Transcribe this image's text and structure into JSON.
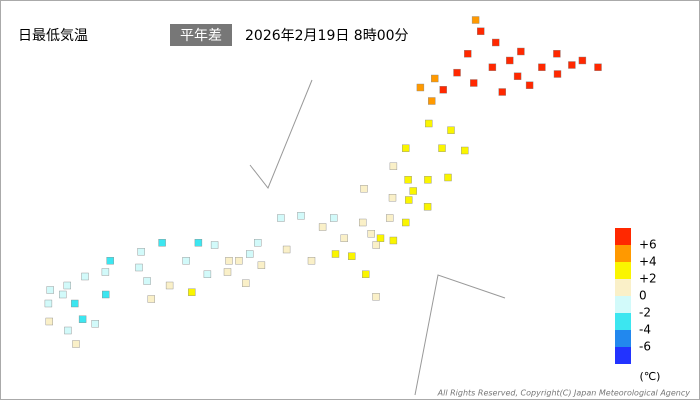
{
  "header": {
    "title": "日最低気温",
    "badge": "平年差",
    "datetime": "2026年2月19日 8時00分"
  },
  "legend": {
    "ticks": [
      {
        "value": 6,
        "label": "+6"
      },
      {
        "value": 4,
        "label": "+4"
      },
      {
        "value": 2,
        "label": "+2"
      },
      0,
      -2,
      -4,
      -6
    ],
    "colors": [
      "#ff2800",
      "#ff9900",
      "#faf500",
      "#faf0c8",
      "#d2fafa",
      "#3ce6f0",
      "#2288ee",
      "#2233ff"
    ],
    "unit": "(℃)"
  },
  "stations": {
    "lon": [
      141.7,
      141.9,
      142.4,
      143.2,
      144.3,
      145.1,
      145.6,
      144.4,
      143.2,
      142.4,
      141.35,
      140.7,
      141.0,
      140.7,
      142.8,
      143.6,
      141.6,
      142.9,
      144.8,
      140.3,
      141.9,
      143.9,
      140.7,
      141.4,
      140.1,
      141.2,
      141.9,
      140.3,
      140.9,
      141.5,
      139.8,
      140.5,
      141.0,
      139.9,
      140.4,
      139.7,
      140.1,
      139.6,
      140.4,
      139.9,
      139.1,
      139.4,
      138.6,
      138.2,
      137.9,
      136.9,
      138.4,
      137.7,
      139.0,
      137.2,
      136.6,
      139.4,
      138.9,
      135.5,
      135.8,
      135.2,
      136.2,
      135.2,
      135.8,
      136.0,
      134.7,
      134.2,
      133.1,
      132.5,
      131.6,
      133.9,
      132.5,
      131.5,
      130.9,
      134.6,
      133.5,
      132.8,
      133.0,
      134.2,
      130.4,
      130.3,
      129.9,
      130.7,
      131.6,
      131.4,
      130.6,
      131.0,
      130.0,
      130.9,
      129.9,
      139.8
    ],
    "lat": [
      45.4,
      44.9,
      44.4,
      44.0,
      43.9,
      43.6,
      43.3,
      43.0,
      42.9,
      43.3,
      43.06,
      42.8,
      42.3,
      41.8,
      42.2,
      42.5,
      43.9,
      43.6,
      43.4,
      42.4,
      42.6,
      43.3,
      40.8,
      40.5,
      39.7,
      39.7,
      39.6,
      38.3,
      38.3,
      38.4,
      38.9,
      37.8,
      37.1,
      37.5,
      37.4,
      35.7,
      35.6,
      35.4,
      36.4,
      36.6,
      36.4,
      35.9,
      35.7,
      36.6,
      36.2,
      35.2,
      35.0,
      34.7,
      37.9,
      36.7,
      36.6,
      34.1,
      34.9,
      34.7,
      35.0,
      34.7,
      34.5,
      34.2,
      33.7,
      35.5,
      35.4,
      35.5,
      35.5,
      35.1,
      34.7,
      34.7,
      34.4,
      34.2,
      34.0,
      34.1,
      33.6,
      33.8,
      33.0,
      33.3,
      33.6,
      33.2,
      32.8,
      32.8,
      33.2,
      31.9,
      31.6,
      32.1,
      32.0,
      31.0,
      33.4,
      33.1
    ],
    "anomaly": [
      5,
      7,
      7,
      8,
      8,
      7,
      7,
      8,
      8,
      7,
      6,
      5,
      6,
      4,
      7,
      8,
      6,
      8,
      7,
      4,
      7,
      8,
      3,
      3,
      2,
      3,
      3,
      2,
      3,
      3,
      1,
      2,
      3,
      1,
      2,
      2,
      2,
      1,
      2,
      1,
      1,
      1,
      1,
      -1,
      0.5,
      1,
      2,
      1,
      0.5,
      -2,
      -1,
      3,
      2,
      0.5,
      -1,
      0.5,
      1,
      1,
      1,
      -1,
      -2,
      -3,
      -3,
      -2,
      -3,
      -1,
      -1,
      -2,
      -1,
      -1,
      0.5,
      -1,
      1,
      2,
      -1,
      -1,
      -2,
      -3,
      -3,
      -1,
      -2,
      -4,
      0.5,
      1,
      -2,
      1
    ]
  },
  "copyright": "All Rights Reserved, Copyright(C) Japan Meteorological Agency"
}
